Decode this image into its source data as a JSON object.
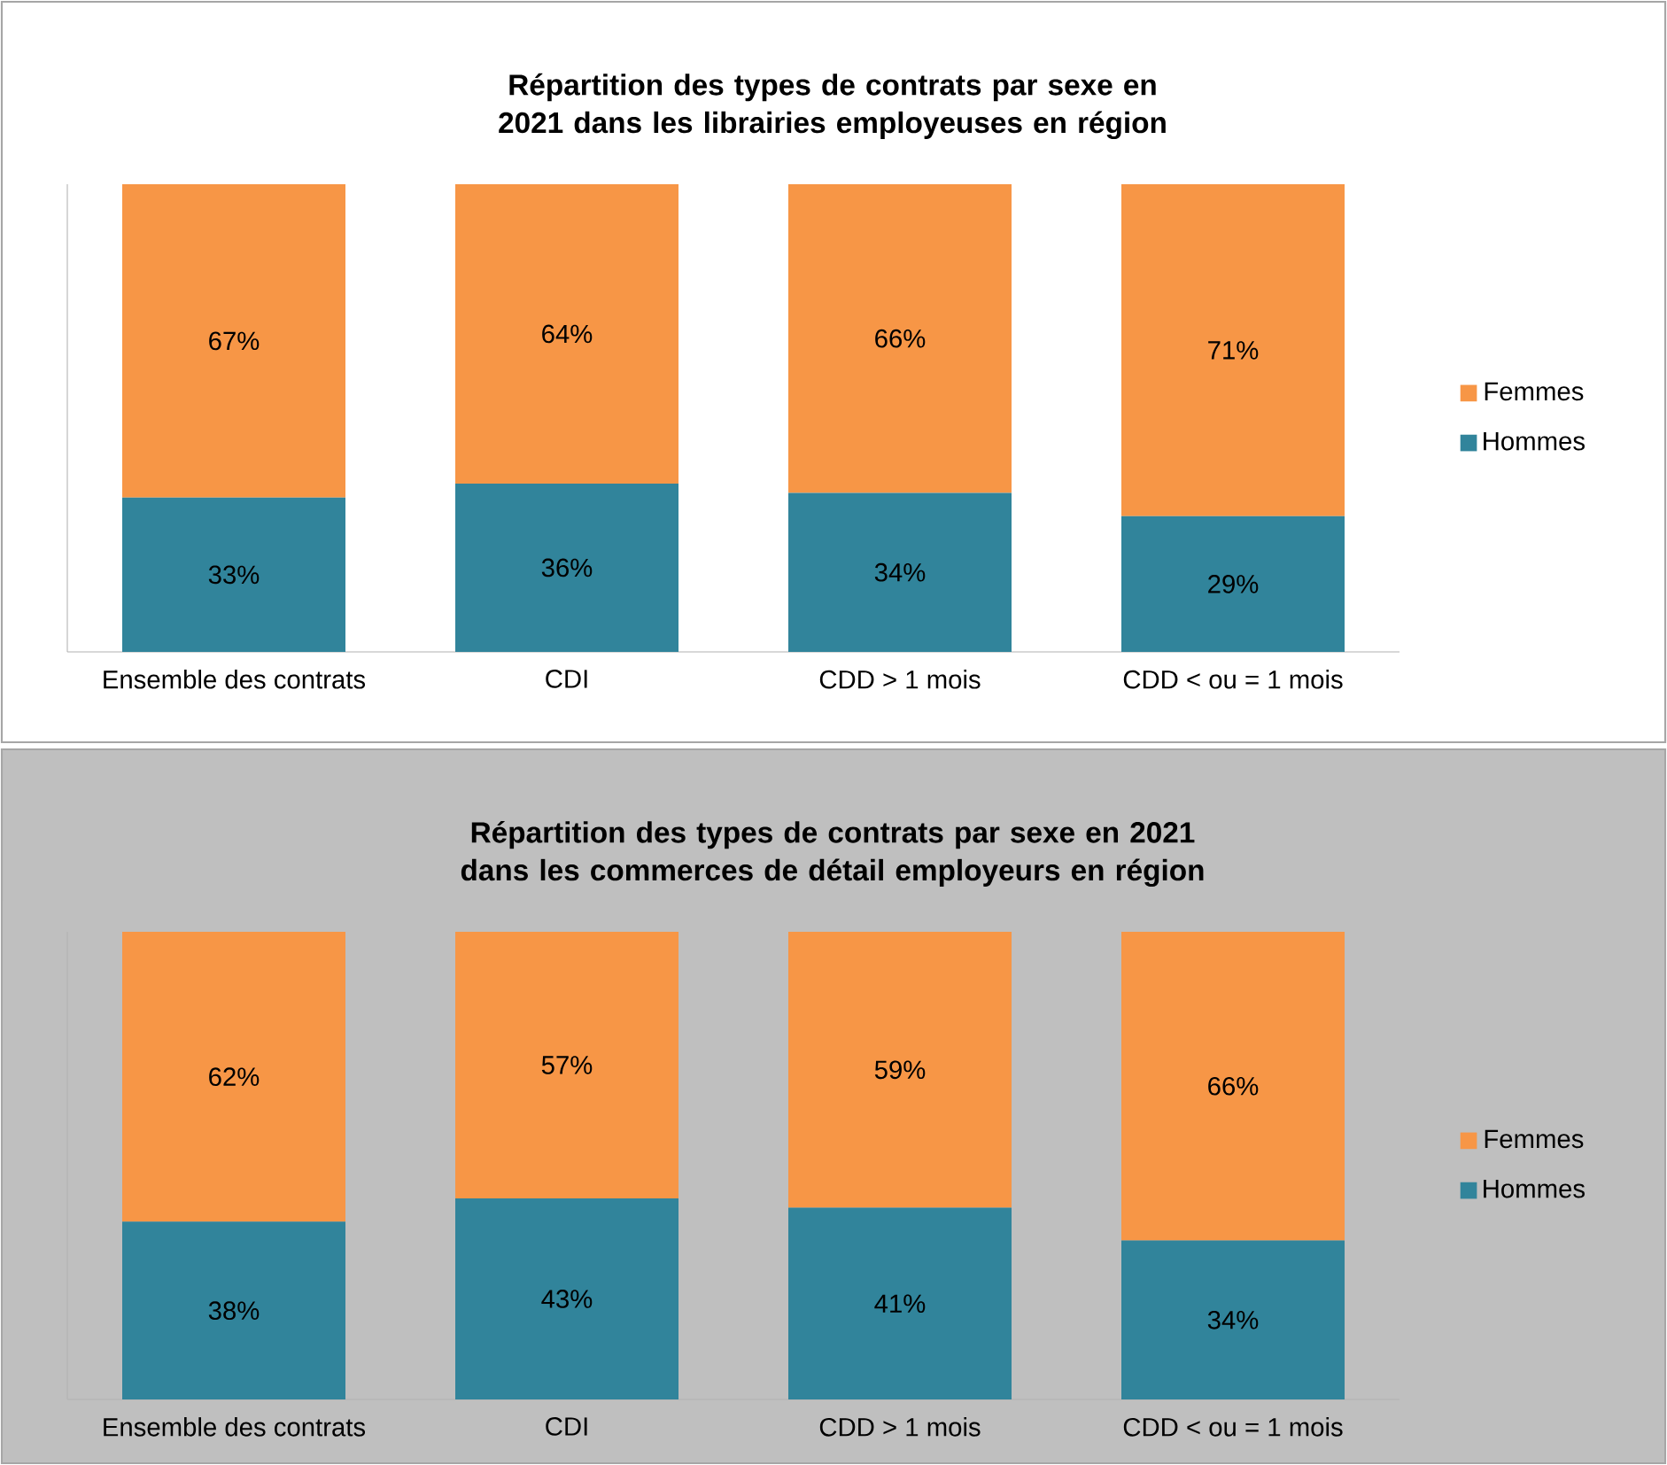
{
  "chart_data": [
    {
      "type": "bar",
      "stacked": true,
      "legend": "right",
      "title": "Répartition des types de contrats par sexe en 2021 dans les librairies employeuses en région",
      "categories": [
        "Ensemble des contrats",
        "CDI",
        "CDD > 1 mois",
        "CDD < ou = 1 mois"
      ],
      "series": [
        {
          "name": "Hommes",
          "color": "#31849b",
          "values": [
            33,
            36,
            34,
            29
          ],
          "value_labels": [
            "33%",
            "36%",
            "34%",
            "29%"
          ]
        },
        {
          "name": "Femmes",
          "color": "#f79646",
          "values": [
            67,
            64,
            66,
            71
          ],
          "value_labels": [
            "67%",
            "64%",
            "66%",
            "71%"
          ]
        }
      ]
    },
    {
      "type": "bar",
      "stacked": true,
      "legend": "right",
      "title": "Répartition des types de contrats par sexe en 2021 dans les commerces de détail employeurs en région",
      "categories": [
        "Ensemble des contrats",
        "CDI",
        "CDD > 1 mois",
        "CDD < ou = 1 mois"
      ],
      "series": [
        {
          "name": "Hommes",
          "color": "#31849b",
          "values": [
            38,
            43,
            41,
            34
          ],
          "value_labels": [
            "38%",
            "43%",
            "41%",
            "34%"
          ]
        },
        {
          "name": "Femmes",
          "color": "#f79646",
          "values": [
            62,
            57,
            59,
            66
          ],
          "value_labels": [
            "62%",
            "57%",
            "59%",
            "66%"
          ]
        }
      ]
    }
  ]
}
